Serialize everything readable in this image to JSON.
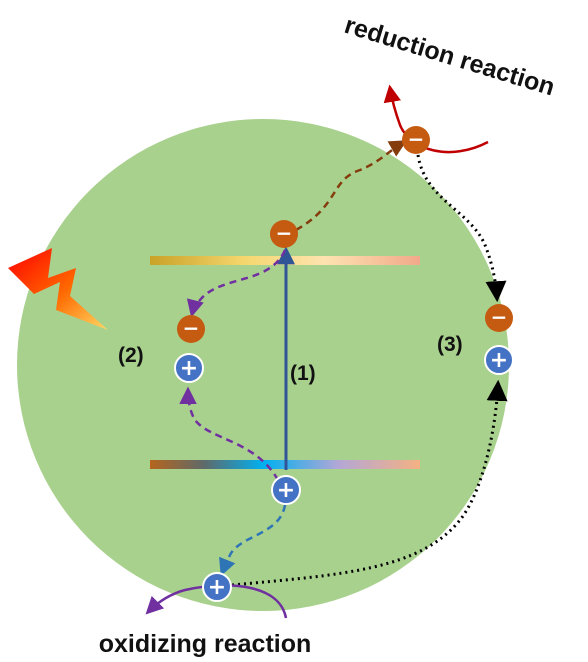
{
  "labels": {
    "reduction": "reduction reaction",
    "oxidizing": "oxidizing reaction",
    "step1": "(1)",
    "step2": "(2)",
    "step3": "(3)"
  },
  "symbols": {
    "electron": "−",
    "hole": "+"
  },
  "colors": {
    "particle_bg": "#a9d18e",
    "electron": "#c55a11",
    "hole": "#4472c4",
    "reduction_arrow": "#c00000",
    "oxidizing_arrow": "#7030a0",
    "excitation_arrow": "#2f5597",
    "recombination_arrow": "#7030a0",
    "migration_arrow": "#843c0c",
    "transfer_arrow": "#000000"
  },
  "icons": {
    "light": "lightning-bolt-icon"
  }
}
